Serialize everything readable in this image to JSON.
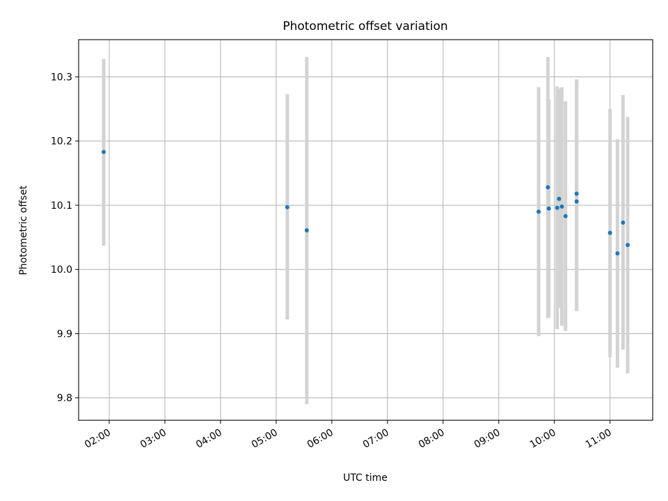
{
  "chart_data": {
    "type": "scatter",
    "title": "Photometric offset variation",
    "xlabel": "UTC time",
    "ylabel": "Photometric offset",
    "x_ticks": [
      "02:00",
      "03:00",
      "04:00",
      "05:00",
      "06:00",
      "07:00",
      "08:00",
      "09:00",
      "10:00",
      "11:00"
    ],
    "y_ticks": [
      "9.8",
      "9.9",
      "10.0",
      "10.1",
      "10.2",
      "10.3"
    ],
    "x_range": [
      "01:27",
      "11:46"
    ],
    "ylim": [
      9.765,
      10.358
    ],
    "grid": true,
    "colors": {
      "marker": "#1f77b4",
      "errorbar": "#d3d3d3",
      "grid": "#b0b0b0"
    },
    "points": [
      {
        "x": "01:54",
        "y": 10.183,
        "ylow": 10.037,
        "yhigh": 10.328
      },
      {
        "x": "05:12",
        "y": 10.097,
        "ylow": 9.922,
        "yhigh": 10.273
      },
      {
        "x": "05:33",
        "y": 10.061,
        "ylow": 9.79,
        "yhigh": 10.331
      },
      {
        "x": "09:43",
        "y": 10.09,
        "ylow": 9.896,
        "yhigh": 10.284
      },
      {
        "x": "09:53",
        "y": 10.128,
        "ylow": 9.924,
        "yhigh": 10.331
      },
      {
        "x": "09:54",
        "y": 10.095,
        "ylow": 9.925,
        "yhigh": 10.265
      },
      {
        "x": "10:03",
        "y": 10.096,
        "ylow": 9.907,
        "yhigh": 10.285
      },
      {
        "x": "10:05",
        "y": 10.11,
        "ylow": 9.94,
        "yhigh": 10.282
      },
      {
        "x": "10:08",
        "y": 10.098,
        "ylow": 9.912,
        "yhigh": 10.284
      },
      {
        "x": "10:12",
        "y": 10.083,
        "ylow": 9.904,
        "yhigh": 10.262
      },
      {
        "x": "10:24",
        "y": 10.118,
        "ylow": 9.935,
        "yhigh": 10.296
      },
      {
        "x": "10:24",
        "y": 10.106,
        "ylow": 9.935,
        "yhigh": 10.296
      },
      {
        "x": "11:00",
        "y": 10.057,
        "ylow": 9.863,
        "yhigh": 10.25
      },
      {
        "x": "11:08",
        "y": 10.025,
        "ylow": 9.847,
        "yhigh": 10.203
      },
      {
        "x": "11:14",
        "y": 10.073,
        "ylow": 9.875,
        "yhigh": 10.272
      },
      {
        "x": "11:19",
        "y": 10.038,
        "ylow": 9.838,
        "yhigh": 10.238
      }
    ]
  }
}
